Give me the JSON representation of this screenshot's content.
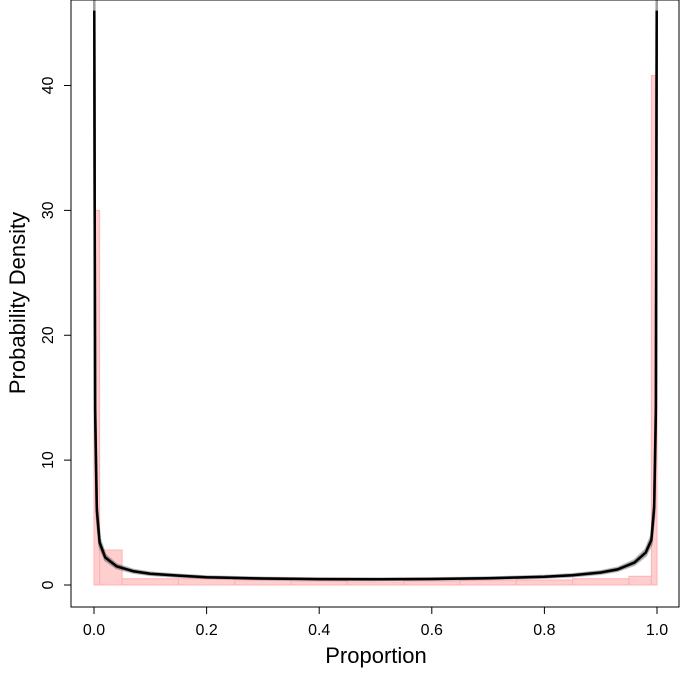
{
  "chart_data": {
    "type": "area",
    "title": "",
    "xlabel": "Proportion",
    "ylabel": "Probability Density",
    "xlim": [
      0,
      1
    ],
    "ylim": [
      0,
      46
    ],
    "x_ticks": [
      0.0,
      0.2,
      0.4,
      0.6,
      0.8,
      1.0
    ],
    "x_tick_labels": [
      "0.0",
      "0.2",
      "0.4",
      "0.6",
      "0.8",
      "1.0"
    ],
    "y_ticks": [
      0,
      10,
      20,
      30,
      40
    ],
    "y_tick_labels": [
      "0",
      "10",
      "20",
      "30",
      "40"
    ],
    "grid": false,
    "histogram": {
      "color": "#ffb3b3",
      "bins": [
        {
          "x0": 0.0,
          "x1": 0.01,
          "density": 30
        },
        {
          "x0": 0.01,
          "x1": 0.05,
          "density": 2.8
        },
        {
          "x0": 0.05,
          "x1": 0.15,
          "density": 0.5
        },
        {
          "x0": 0.15,
          "x1": 0.25,
          "density": 0.5
        },
        {
          "x0": 0.25,
          "x1": 0.35,
          "density": 0.4
        },
        {
          "x0": 0.35,
          "x1": 0.45,
          "density": 0.3
        },
        {
          "x0": 0.45,
          "x1": 0.55,
          "density": 0.25
        },
        {
          "x0": 0.55,
          "x1": 0.65,
          "density": 0.3
        },
        {
          "x0": 0.65,
          "x1": 0.75,
          "density": 0.35
        },
        {
          "x0": 0.75,
          "x1": 0.85,
          "density": 0.4
        },
        {
          "x0": 0.85,
          "x1": 0.95,
          "density": 0.5
        },
        {
          "x0": 0.95,
          "x1": 0.99,
          "density": 0.7
        },
        {
          "x0": 0.99,
          "x1": 1.0,
          "density": 40.8
        }
      ]
    },
    "density_curve": {
      "type": "line",
      "color": "#000000",
      "note_shape": "U-shaped (beta-like) posterior density curves",
      "points": [
        [
          0.0005,
          46
        ],
        [
          0.002,
          14
        ],
        [
          0.005,
          6
        ],
        [
          0.01,
          3.4
        ],
        [
          0.02,
          2.2
        ],
        [
          0.04,
          1.5
        ],
        [
          0.07,
          1.1
        ],
        [
          0.1,
          0.9
        ],
        [
          0.15,
          0.75
        ],
        [
          0.2,
          0.62
        ],
        [
          0.3,
          0.52
        ],
        [
          0.4,
          0.47
        ],
        [
          0.5,
          0.46
        ],
        [
          0.6,
          0.48
        ],
        [
          0.7,
          0.54
        ],
        [
          0.8,
          0.66
        ],
        [
          0.85,
          0.78
        ],
        [
          0.9,
          1.0
        ],
        [
          0.93,
          1.25
        ],
        [
          0.96,
          1.8
        ],
        [
          0.98,
          2.6
        ],
        [
          0.99,
          3.6
        ],
        [
          0.995,
          6.2
        ],
        [
          0.998,
          14
        ],
        [
          0.9995,
          46
        ]
      ]
    }
  }
}
